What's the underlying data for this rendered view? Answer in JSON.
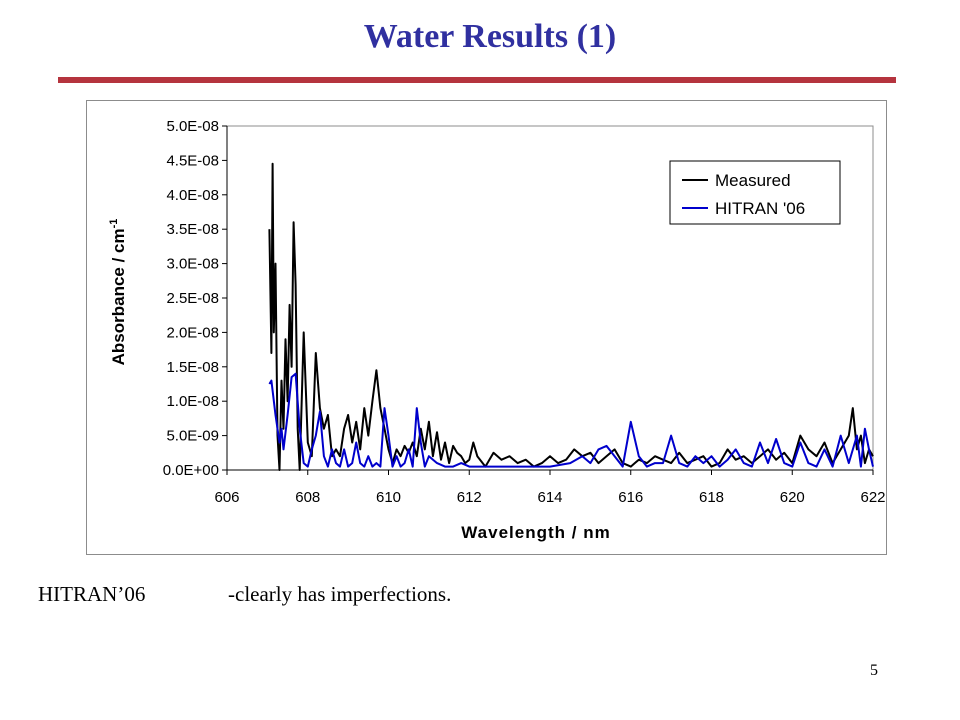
{
  "slide": {
    "title": "Water Results (1)",
    "caption_left": "HITRAN’06",
    "caption_right": "-clearly has imperfections.",
    "page_number": "5",
    "title_color": "#3030a0",
    "rule_color": "#b5343e"
  },
  "chart_data": {
    "type": "line",
    "xlabel": "Wavelength / nm",
    "ylabel_main": "Absorbance / cm",
    "ylabel_sup": "-1",
    "xlim": [
      606,
      622
    ],
    "ylim": [
      0,
      5e-08
    ],
    "xticks": [
      606,
      608,
      610,
      612,
      614,
      616,
      618,
      620,
      622
    ],
    "xtick_labels": [
      "606",
      "608",
      "610",
      "612",
      "614",
      "616",
      "618",
      "620",
      "622"
    ],
    "yticks": [
      0,
      5e-09,
      1e-08,
      1.5e-08,
      2e-08,
      2.5e-08,
      3e-08,
      3.5e-08,
      4e-08,
      4.5e-08,
      5e-08
    ],
    "ytick_labels": [
      "0.0E+00",
      "5.0E-09",
      "1.0E-08",
      "1.5E-08",
      "2.0E-08",
      "2.5E-08",
      "3.0E-08",
      "3.5E-08",
      "4.0E-08",
      "4.5E-08",
      "5.0E-08"
    ],
    "grid": false,
    "legend_position": "top-right",
    "series": [
      {
        "name": "Measured",
        "color": "#000000",
        "x": [
          607.05,
          607.1,
          607.13,
          607.16,
          607.2,
          607.25,
          607.3,
          607.35,
          607.4,
          607.45,
          607.5,
          607.55,
          607.6,
          607.65,
          607.7,
          607.75,
          607.8,
          607.9,
          608.0,
          608.1,
          608.2,
          608.3,
          608.4,
          608.5,
          608.6,
          608.7,
          608.8,
          608.9,
          609.0,
          609.1,
          609.2,
          609.3,
          609.4,
          609.5,
          609.6,
          609.7,
          609.8,
          609.9,
          610.0,
          610.1,
          610.2,
          610.3,
          610.4,
          610.5,
          610.6,
          610.7,
          610.8,
          610.9,
          611.0,
          611.1,
          611.2,
          611.3,
          611.4,
          611.5,
          611.6,
          611.7,
          611.8,
          611.9,
          612.0,
          612.1,
          612.2,
          612.4,
          612.6,
          612.8,
          613.0,
          613.2,
          613.4,
          613.6,
          613.8,
          614.0,
          614.2,
          614.4,
          614.6,
          614.8,
          615.0,
          615.2,
          615.4,
          615.6,
          615.8,
          616.0,
          616.2,
          616.4,
          616.6,
          616.8,
          617.0,
          617.2,
          617.4,
          617.6,
          617.8,
          618.0,
          618.2,
          618.4,
          618.6,
          618.8,
          619.0,
          619.2,
          619.4,
          619.6,
          619.8,
          620.0,
          620.2,
          620.4,
          620.6,
          620.8,
          621.0,
          621.2,
          621.4,
          621.5,
          621.6,
          621.7,
          621.8,
          621.9,
          622.0
        ],
        "values": [
          3.5e-08,
          1.7e-08,
          4.45e-08,
          2e-08,
          3e-08,
          5e-09,
          0,
          1.3e-08,
          6e-09,
          1.9e-08,
          1e-08,
          2.4e-08,
          1.5e-08,
          3.6e-08,
          2.7e-08,
          6e-09,
          0,
          2e-08,
          4e-09,
          2e-09,
          1.7e-08,
          9e-09,
          6e-09,
          8e-09,
          2e-09,
          3e-09,
          2e-09,
          6e-09,
          8e-09,
          4e-09,
          7e-09,
          3e-09,
          9e-09,
          5e-09,
          1e-08,
          1.45e-08,
          9e-09,
          6e-09,
          3e-09,
          1e-09,
          3e-09,
          2e-09,
          3.5e-09,
          2.5e-09,
          4e-09,
          2e-09,
          6e-09,
          3e-09,
          7e-09,
          2e-09,
          5.5e-09,
          1.5e-09,
          4e-09,
          1e-09,
          3.5e-09,
          2.5e-09,
          2e-09,
          1e-09,
          1.5e-09,
          4e-09,
          2e-09,
          5e-10,
          2.5e-09,
          1.5e-09,
          2e-09,
          1e-09,
          1.5e-09,
          5e-10,
          1e-09,
          2e-09,
          1e-09,
          1.5e-09,
          3e-09,
          2e-09,
          2.5e-09,
          1e-09,
          2e-09,
          3e-09,
          1e-09,
          5e-10,
          1.5e-09,
          1e-09,
          2e-09,
          1.5e-09,
          1e-09,
          2.5e-09,
          1e-09,
          1.5e-09,
          2e-09,
          5e-10,
          1e-09,
          3e-09,
          1.5e-09,
          2e-09,
          1e-09,
          2e-09,
          3e-09,
          1.5e-09,
          2.5e-09,
          1e-09,
          5e-09,
          3e-09,
          2e-09,
          4e-09,
          1e-09,
          3e-09,
          5e-09,
          9e-09,
          3e-09,
          5e-09,
          1e-09,
          3e-09,
          2e-09
        ]
      },
      {
        "name": "HITRAN '06",
        "color": "#0000cc",
        "x": [
          607.05,
          607.1,
          607.2,
          607.3,
          607.35,
          607.4,
          607.5,
          607.6,
          607.7,
          607.8,
          607.9,
          608.0,
          608.1,
          608.2,
          608.3,
          608.4,
          608.5,
          608.6,
          608.7,
          608.8,
          608.9,
          609.0,
          609.1,
          609.2,
          609.3,
          609.4,
          609.5,
          609.6,
          609.7,
          609.8,
          609.9,
          610.0,
          610.1,
          610.2,
          610.3,
          610.4,
          610.5,
          610.6,
          610.7,
          610.8,
          610.9,
          611.0,
          611.2,
          611.4,
          611.6,
          611.8,
          612.0,
          612.5,
          613.0,
          613.5,
          614.0,
          614.5,
          614.8,
          615.0,
          615.2,
          615.4,
          615.6,
          615.8,
          616.0,
          616.2,
          616.4,
          616.6,
          616.8,
          617.0,
          617.2,
          617.4,
          617.6,
          617.8,
          618.0,
          618.2,
          618.4,
          618.6,
          618.8,
          619.0,
          619.2,
          619.4,
          619.6,
          619.8,
          620.0,
          620.2,
          620.4,
          620.6,
          620.8,
          621.0,
          621.2,
          621.4,
          621.6,
          621.7,
          621.8,
          621.9,
          622.0
        ],
        "values": [
          1.25e-08,
          1.3e-08,
          8e-09,
          4e-09,
          6e-09,
          3e-09,
          8e-09,
          1.35e-08,
          1.4e-08,
          6e-09,
          1e-09,
          5e-10,
          3e-09,
          5e-09,
          8.5e-09,
          2e-09,
          5e-10,
          3e-09,
          1e-09,
          5e-10,
          3e-09,
          5e-10,
          1e-09,
          4e-09,
          1e-09,
          5e-10,
          2e-09,
          5e-10,
          1e-09,
          5e-10,
          9e-09,
          5e-09,
          5e-10,
          2e-09,
          5e-10,
          1e-09,
          3e-09,
          5e-10,
          9e-09,
          4e-09,
          5e-10,
          2e-09,
          1e-09,
          5e-10,
          5e-10,
          1e-09,
          5e-10,
          5e-10,
          5e-10,
          5e-10,
          5e-10,
          1e-09,
          2e-09,
          1e-09,
          3e-09,
          3.5e-09,
          2e-09,
          5e-10,
          7e-09,
          2e-09,
          5e-10,
          1e-09,
          1e-09,
          5e-09,
          1e-09,
          5e-10,
          2e-09,
          1e-09,
          2e-09,
          5e-10,
          1.5e-09,
          3e-09,
          1e-09,
          5e-10,
          4e-09,
          1e-09,
          4.5e-09,
          1e-09,
          5e-10,
          4e-09,
          1e-09,
          5e-10,
          3e-09,
          5e-10,
          5e-09,
          1e-09,
          5e-09,
          5e-10,
          6e-09,
          3e-09,
          5e-10
        ]
      }
    ]
  }
}
